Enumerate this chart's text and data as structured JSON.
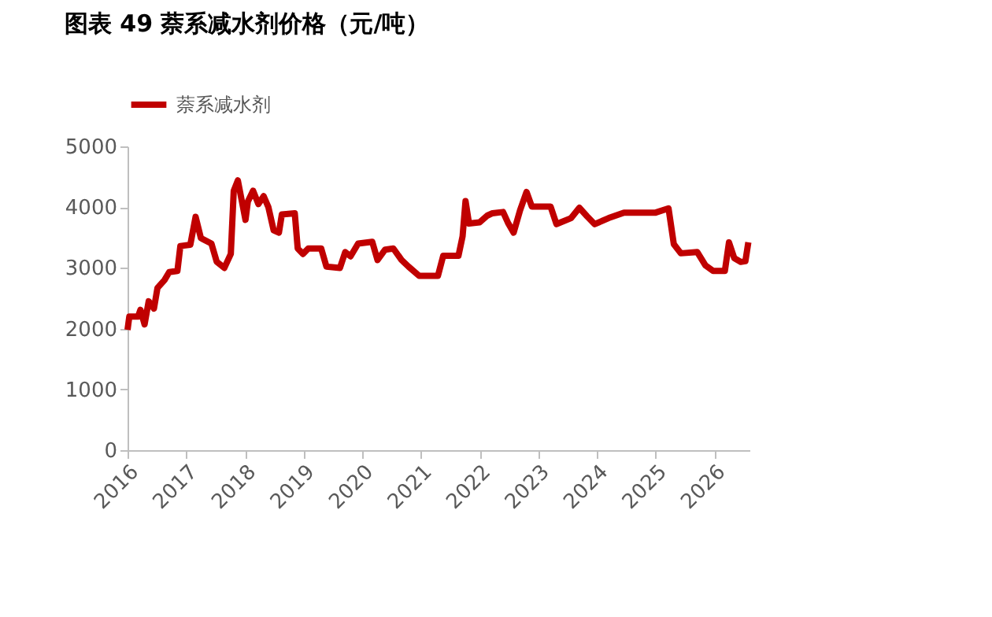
{
  "chart_data": {
    "type": "line",
    "title": "图表 49 萘系减水剂价格（元/吨）",
    "series": [
      {
        "name": "萘系减水剂",
        "color": "#c00000",
        "x": [
          2016.0,
          2016.03,
          2016.18,
          2016.22,
          2016.29,
          2016.36,
          2016.45,
          2016.51,
          2016.63,
          2016.71,
          2016.85,
          2016.9,
          2017.07,
          2017.16,
          2017.25,
          2017.43,
          2017.52,
          2017.65,
          2017.76,
          2017.81,
          2017.88,
          2017.94,
          2018.01,
          2018.05,
          2018.14,
          2018.23,
          2018.32,
          2018.4,
          2018.49,
          2018.58,
          2018.63,
          2018.85,
          2018.9,
          2018.99,
          2019.08,
          2019.3,
          2019.39,
          2019.62,
          2019.71,
          2019.8,
          2019.93,
          2020.17,
          2020.26,
          2020.39,
          2020.53,
          2020.67,
          2020.79,
          2020.97,
          2021.29,
          2021.38,
          2021.64,
          2021.71,
          2021.76,
          2021.82,
          2022.0,
          2022.13,
          2022.22,
          2022.4,
          2022.49,
          2022.58,
          2022.69,
          2022.8,
          2022.89,
          2023.21,
          2023.31,
          2023.56,
          2023.7,
          2023.83,
          2023.96,
          2024.2,
          2024.46,
          2025.0,
          2025.22,
          2025.31,
          2025.43,
          2025.71,
          2025.85,
          2025.98,
          2026.18,
          2026.25,
          2026.34,
          2026.45,
          2026.53,
          2026.58
        ],
        "values": [
          1980,
          2200,
          2200,
          2310,
          2070,
          2450,
          2330,
          2670,
          2800,
          2930,
          2950,
          3360,
          3380,
          3840,
          3490,
          3400,
          3100,
          3000,
          3230,
          4270,
          4440,
          4140,
          3790,
          4090,
          4270,
          4050,
          4180,
          4000,
          3620,
          3580,
          3880,
          3900,
          3320,
          3230,
          3320,
          3320,
          3020,
          3000,
          3260,
          3190,
          3400,
          3430,
          3130,
          3300,
          3320,
          3130,
          3020,
          2870,
          2870,
          3200,
          3200,
          3520,
          4100,
          3730,
          3750,
          3860,
          3900,
          3920,
          3730,
          3580,
          3950,
          4250,
          4010,
          4010,
          3720,
          3820,
          3990,
          3850,
          3720,
          3820,
          3910,
          3910,
          3980,
          3390,
          3240,
          3260,
          3040,
          2950,
          2950,
          3420,
          3160,
          3100,
          3110,
          3420
        ]
      }
    ],
    "xlim": [
      2016,
      2026.6
    ],
    "xticks": [
      2016,
      2017,
      2018,
      2019,
      2020,
      2021,
      2022,
      2023,
      2024,
      2025,
      2026
    ],
    "ylim": [
      0,
      5000
    ],
    "yticks": [
      0,
      1000,
      2000,
      3000,
      4000,
      5000
    ],
    "grid": false,
    "legend": "top",
    "marker": "none",
    "line_style": "solid"
  }
}
